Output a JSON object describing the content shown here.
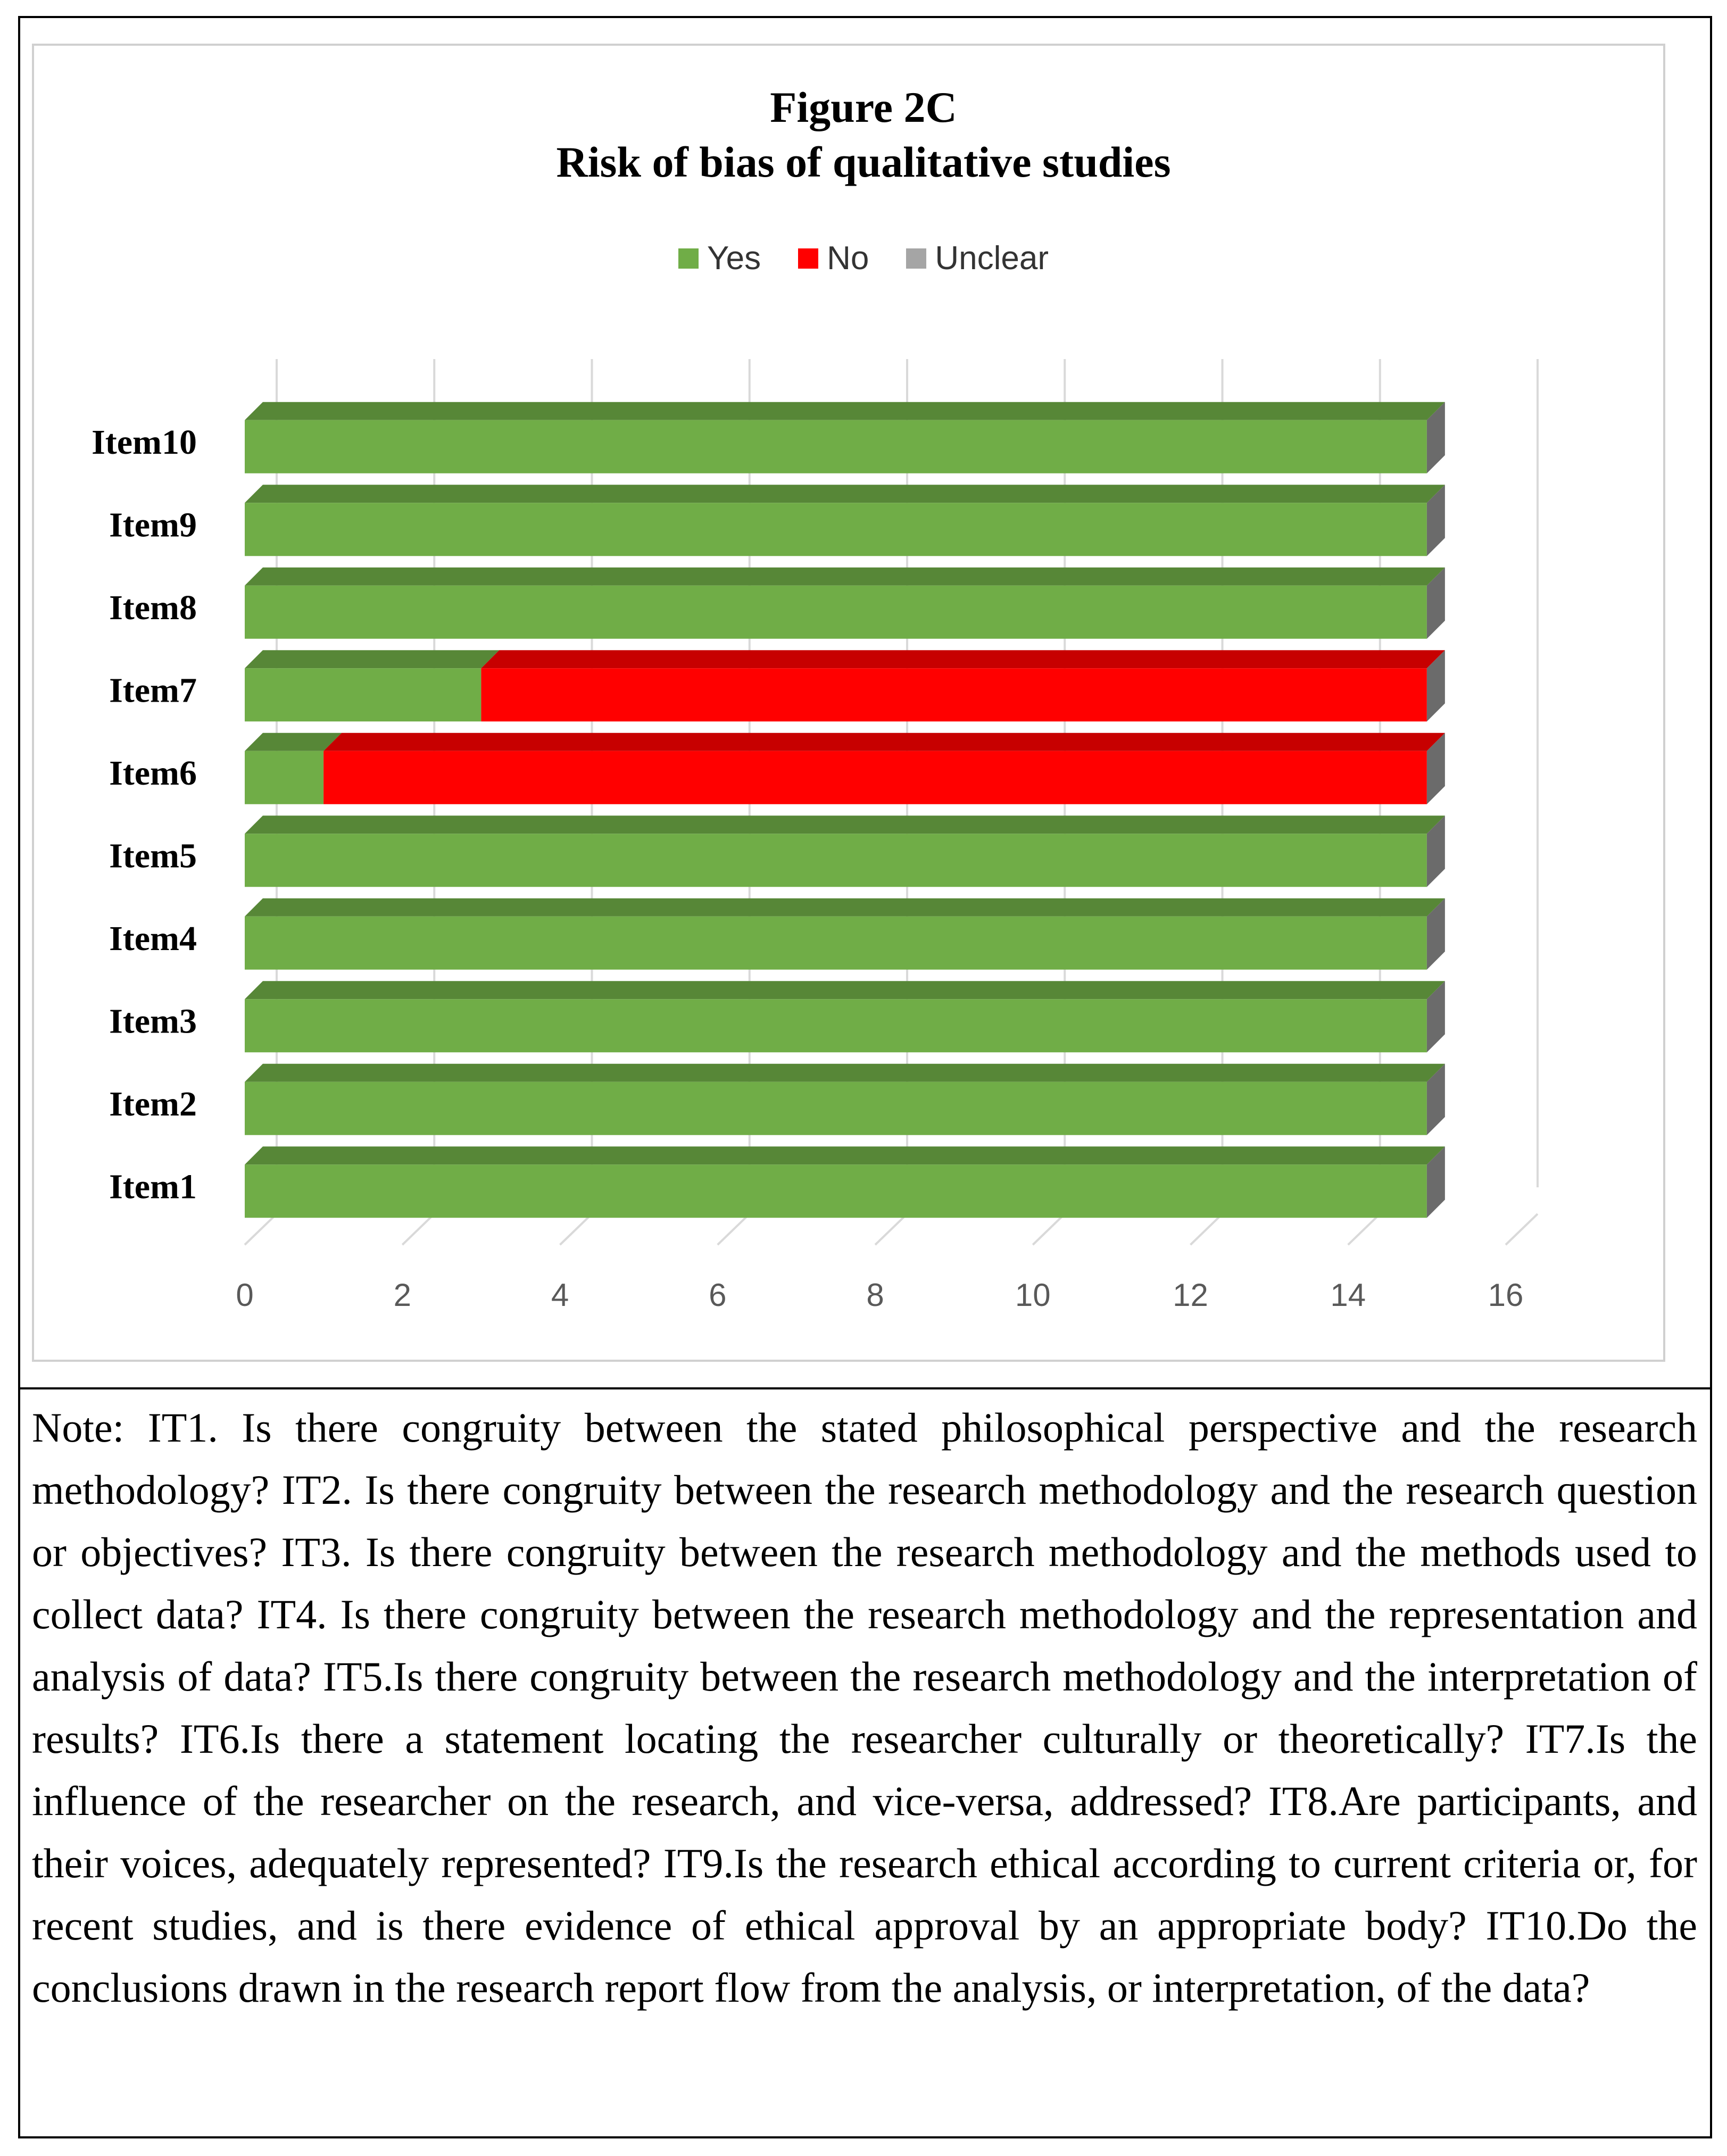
{
  "chart_data": {
    "type": "bar",
    "orientation": "horizontal",
    "stacked": true,
    "title": "Figure 2C",
    "subtitle": "Risk of bias of qualitative studies",
    "categories": [
      "Item1",
      "Item2",
      "Item3",
      "Item4",
      "Item5",
      "Item6",
      "Item7",
      "Item8",
      "Item9",
      "Item10"
    ],
    "series": [
      {
        "name": "Yes",
        "color": "#70ad47",
        "values": [
          15,
          15,
          15,
          15,
          15,
          1,
          3,
          15,
          15,
          15
        ]
      },
      {
        "name": "No",
        "color": "#ff0000",
        "values": [
          0,
          0,
          0,
          0,
          0,
          14,
          12,
          0,
          0,
          0
        ]
      },
      {
        "name": "Unclear",
        "color": "#a5a5a5",
        "values": [
          0,
          0,
          0,
          0,
          0,
          0,
          0,
          0,
          0,
          0
        ]
      }
    ],
    "xlim": [
      0,
      16
    ],
    "xticks": [
      "0",
      "2",
      "4",
      "6",
      "8",
      "10",
      "12",
      "14",
      "16"
    ],
    "grid": true,
    "legend_position": "top"
  },
  "note": "Note: IT1. Is there congruity between the stated philosophical perspective and the research methodology? IT2. Is there congruity between the research methodology and the research question or objectives? IT3. Is there congruity between the research methodology and the methods used to collect data? IT4. Is there congruity between the research methodology and the representation and analysis of data? IT5.Is there congruity between the research methodology and the interpretation of results? IT6.Is there a statement locating the researcher culturally or theoretically? IT7.Is the influence of the researcher on the research, and vice-versa, addressed? IT8.Are participants, and their voices, adequately represented? IT9.Is the research ethical according to current criteria or, for recent studies, and is there evidence of ethical approval by an appropriate body? IT10.Do the conclusions drawn in the research report flow from the analysis, or interpretation, of the data?"
}
